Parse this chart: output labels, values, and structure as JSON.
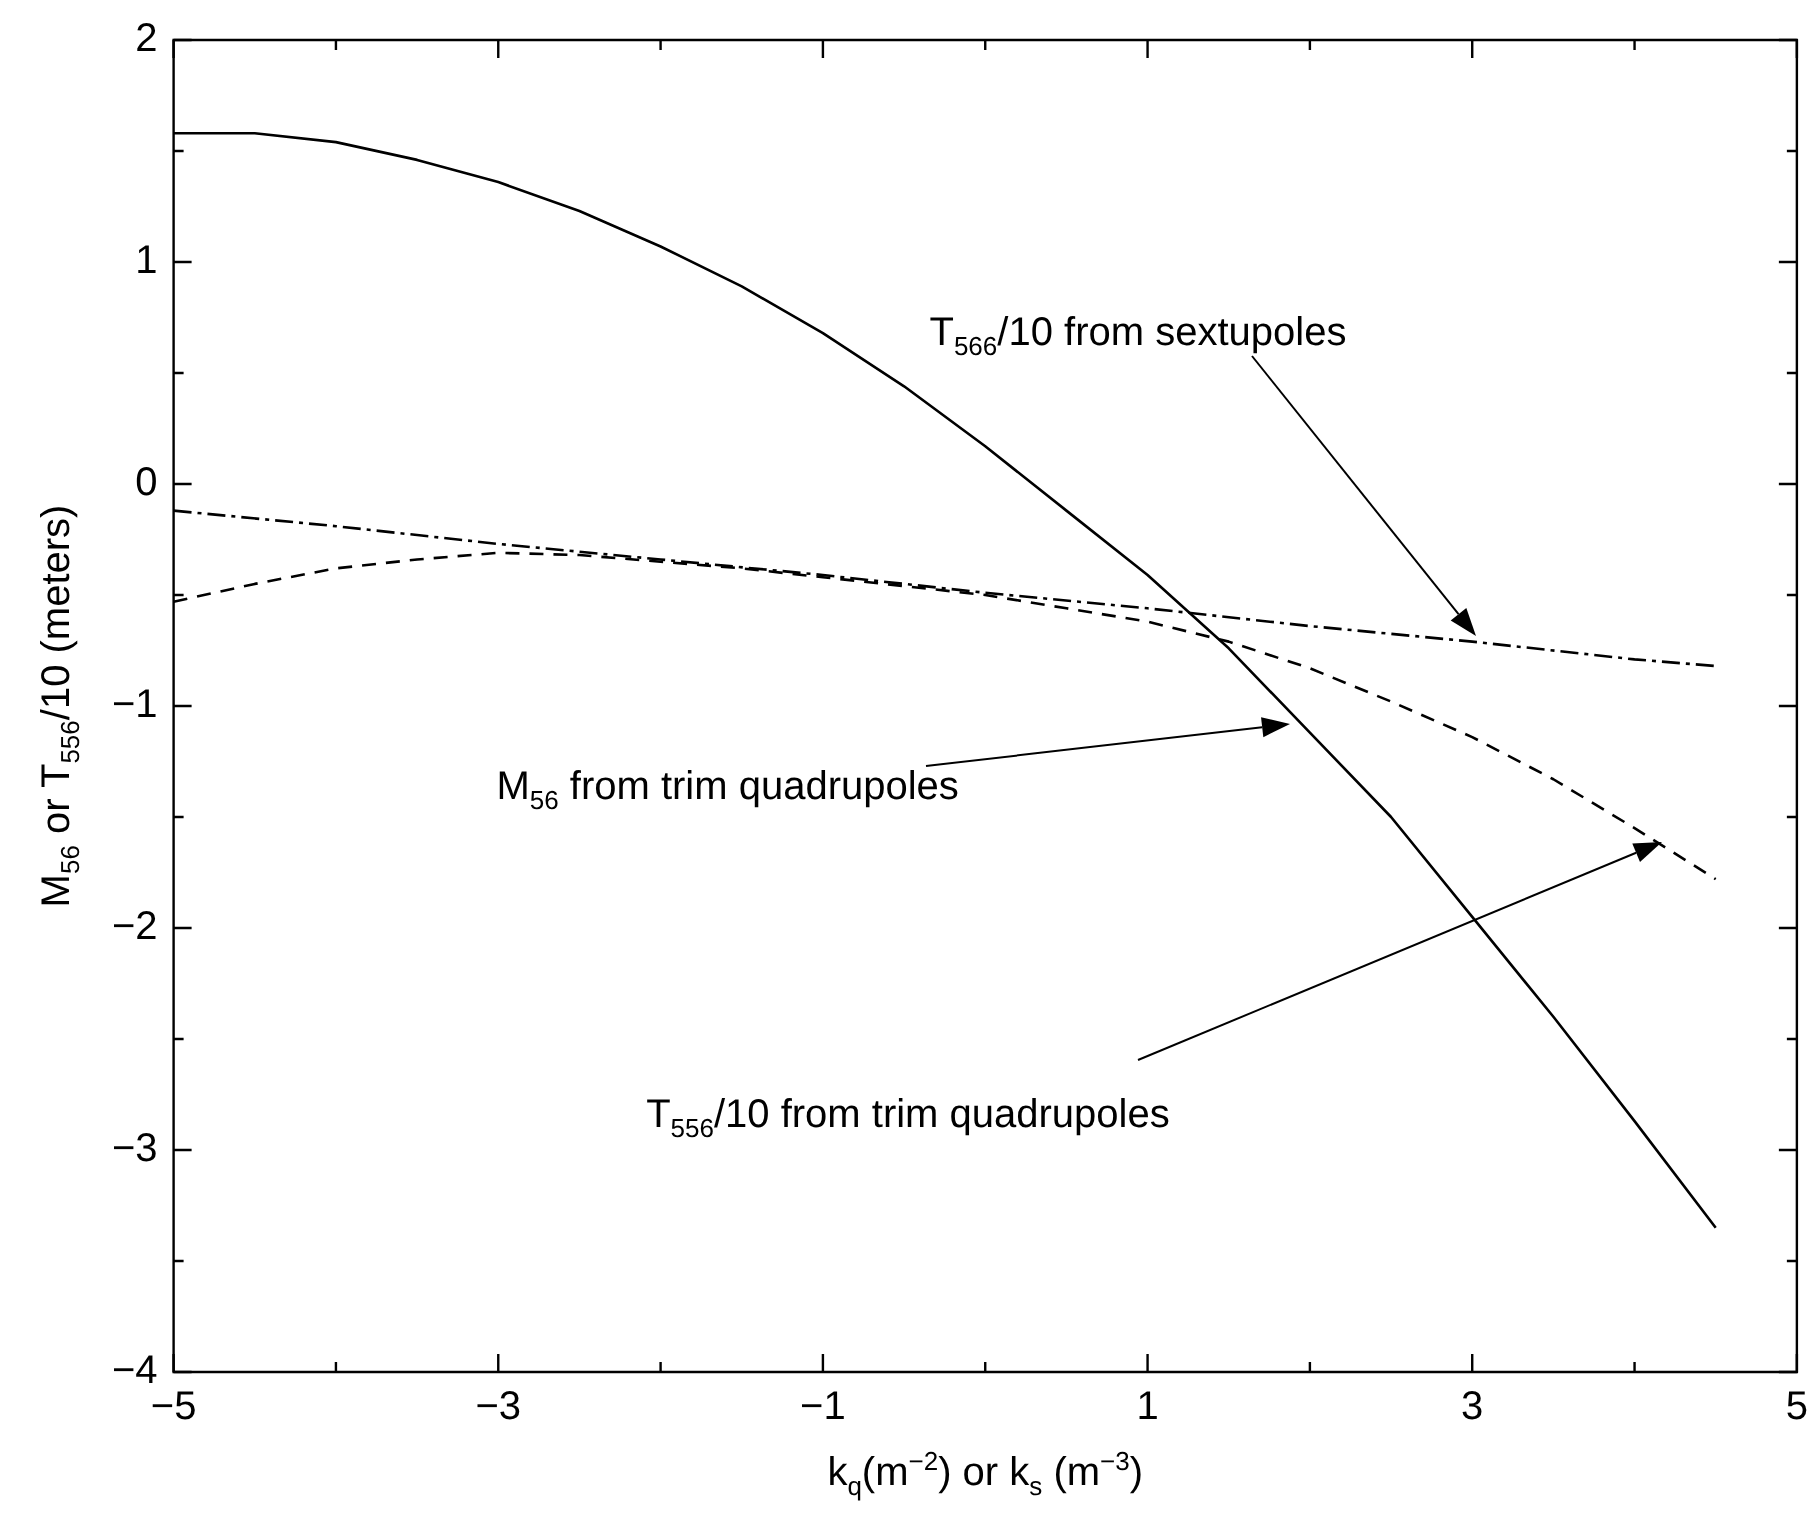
{
  "chart_data": {
    "type": "line",
    "xlabel": "k$_{q}$(m$^{−2}$) or k$_{s}$ (m$^{−3}$)",
    "ylabel": "M$_{56}$ or T$_{556}$/10  (meters)",
    "xlim": [
      -5,
      5
    ],
    "xticks": [
      {
        "value": -5,
        "label": "−5"
      },
      {
        "value": -4,
        "label": null
      },
      {
        "value": -3,
        "label": "−3"
      },
      {
        "value": -2,
        "label": null
      },
      {
        "value": -1,
        "label": "−1"
      },
      {
        "value": 0,
        "label": null
      },
      1,
      {
        "value": 2,
        "label": null
      },
      3,
      {
        "value": 4,
        "label": null
      },
      5
    ],
    "ylim": [
      -4,
      2
    ],
    "yticks": [
      {
        "value": -4,
        "label": "−4"
      },
      {
        "value": -3.5,
        "label": null
      },
      {
        "value": -3,
        "label": "−3"
      },
      {
        "value": -2.5,
        "label": null
      },
      {
        "value": -2,
        "label": "−2"
      },
      {
        "value": -1.5,
        "label": null
      },
      {
        "value": -1,
        "label": "−1"
      },
      {
        "value": -0.5,
        "label": null
      },
      0,
      {
        "value": 0.5,
        "label": null
      },
      1,
      {
        "value": 1.5,
        "label": null
      },
      2
    ],
    "grid": false,
    "legend": false,
    "marker": "none",
    "series": [
      {
        "color": "#000000",
        "line_style": "solid",
        "x": [
          -5,
          -4.5,
          -4,
          -3.5,
          -3,
          -2.5,
          -2,
          -1.5,
          -1,
          -0.5,
          0,
          0.5,
          1,
          1.5,
          2,
          2.5,
          3,
          3.5,
          4,
          4.5
        ],
        "values": [
          1.58,
          1.58,
          1.54,
          1.46,
          1.36,
          1.23,
          1.07,
          0.89,
          0.68,
          0.44,
          0.17,
          -0.12,
          -0.41,
          -0.74,
          -1.12,
          -1.5,
          -1.95,
          -2.4,
          -2.87,
          -3.35
        ]
      },
      {
        "color": "#000000",
        "line_style": "dashdot",
        "x": [
          -5,
          -4,
          -3,
          -2,
          -1,
          0,
          1,
          2,
          3,
          4,
          4.5
        ],
        "values": [
          -0.12,
          -0.19,
          -0.27,
          -0.34,
          -0.41,
          -0.49,
          -0.56,
          -0.64,
          -0.71,
          -0.79,
          -0.82
        ]
      },
      {
        "color": "#000000",
        "line_style": "dashed",
        "x": [
          -5,
          -4.5,
          -4,
          -3.5,
          -3,
          -2.5,
          -2,
          -1.5,
          -1,
          -0.5,
          0,
          0.5,
          1,
          1.5,
          2,
          2.5,
          3,
          3.5,
          4,
          4.5
        ],
        "values": [
          -0.53,
          -0.45,
          -0.38,
          -0.34,
          -0.31,
          -0.32,
          -0.35,
          -0.38,
          -0.42,
          -0.46,
          -0.5,
          -0.56,
          -0.62,
          -0.71,
          -0.83,
          -0.98,
          -1.14,
          -1.33,
          -1.55,
          -1.78
        ]
      }
    ],
    "annotations": [
      "T$_{566}$/10 from sextupoles",
      "M$_{56}$ from trim quadrupoles",
      "T$_{556}$/10 from trim quadrupoles"
    ]
  }
}
